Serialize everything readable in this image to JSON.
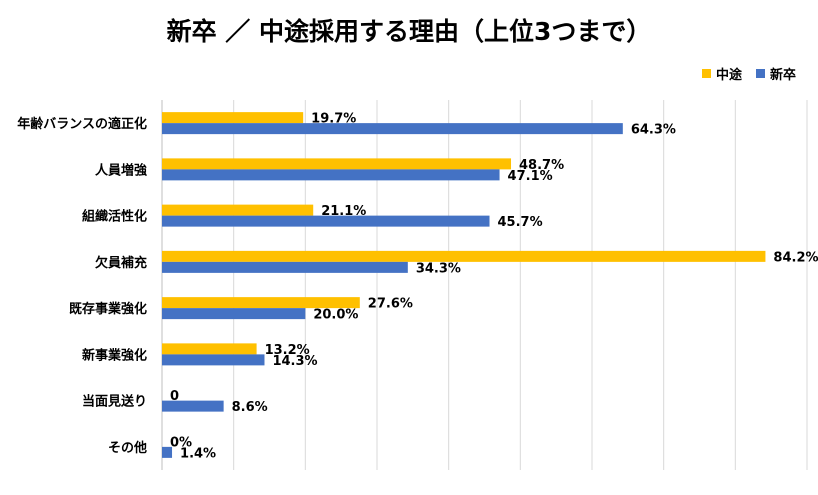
{
  "chart_data": {
    "type": "bar",
    "orientation": "horizontal",
    "title": "新卒 ／ 中途採用する理由（上位3つまで）",
    "categories": [
      "年齢バランスの適正化",
      "人員増強",
      "組織活性化",
      "欠員補充",
      "既存事業強化",
      "新事業強化",
      "当面見送り",
      "その他"
    ],
    "series": [
      {
        "name": "中途",
        "color": "#FFC000",
        "values": [
          19.7,
          48.7,
          21.1,
          84.2,
          27.6,
          13.2,
          0,
          0
        ],
        "labels": [
          "19.7%",
          "48.7%",
          "21.1%",
          "84.2%",
          "27.6%",
          "13.2%",
          "0",
          "0%"
        ]
      },
      {
        "name": "新卒",
        "color": "#4472C4",
        "values": [
          64.3,
          47.1,
          45.7,
          34.3,
          20.0,
          14.3,
          8.6,
          1.4
        ],
        "labels": [
          "64.3%",
          "47.1%",
          "45.7%",
          "34.3%",
          "20.0%",
          "14.3%",
          "8.6%",
          "1.4%"
        ]
      }
    ],
    "xlim": [
      0,
      90
    ],
    "grid": true,
    "legend_position": "top-right"
  }
}
